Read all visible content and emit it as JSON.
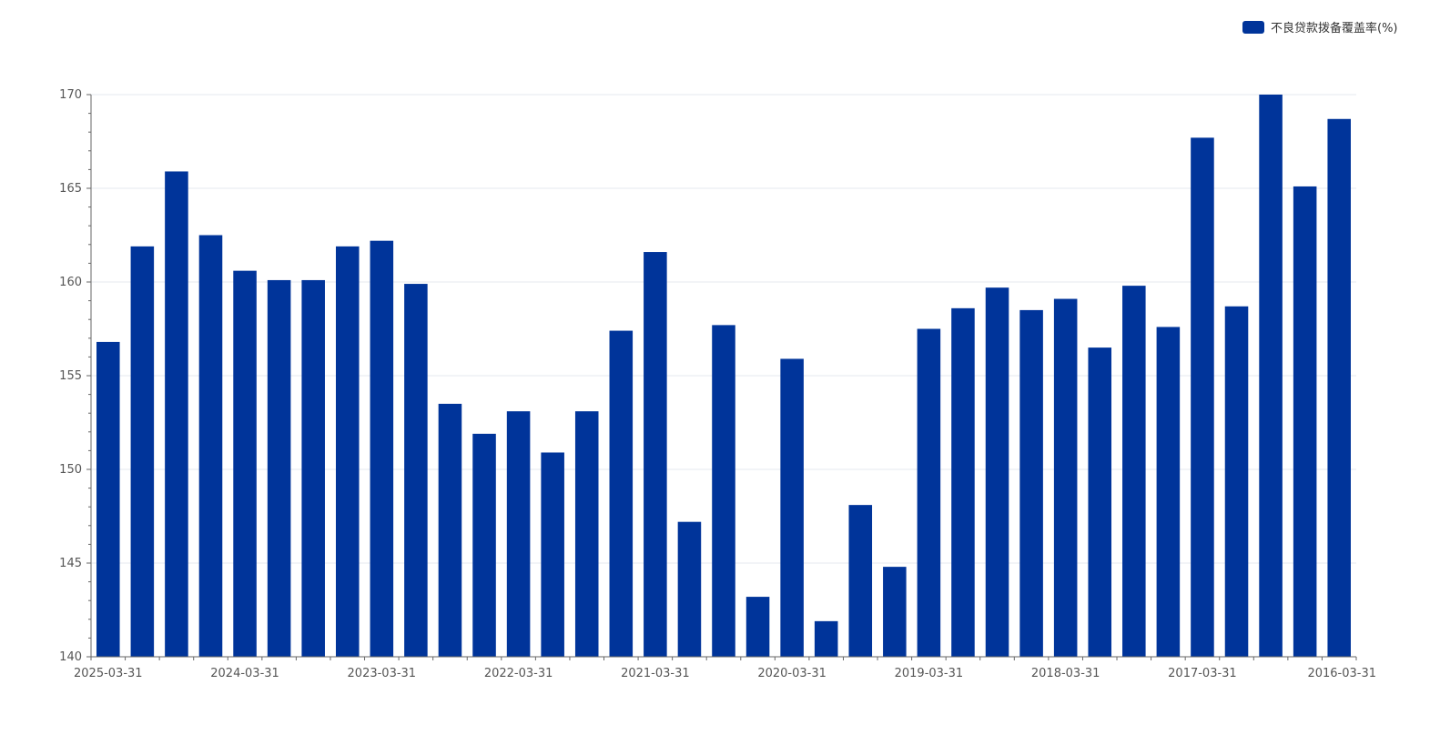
{
  "chart_data": {
    "type": "bar",
    "title": "",
    "xlabel": "",
    "ylabel": "",
    "ylim": [
      140,
      170
    ],
    "yticks": [
      140,
      145,
      150,
      155,
      160,
      165,
      170
    ],
    "x_order": "descending",
    "grid": true,
    "legend_position": "top-right",
    "series": [
      {
        "name": "不良贷款拨备覆盖率(%)",
        "color": "#00349a",
        "categories": [
          "2025-03-31",
          "2024-12-31",
          "2024-09-30",
          "2024-06-30",
          "2024-03-31",
          "2023-12-31",
          "2023-09-30",
          "2023-06-30",
          "2023-03-31",
          "2022-12-31",
          "2022-09-30",
          "2022-06-30",
          "2022-03-31",
          "2021-12-31",
          "2021-09-30",
          "2021-06-30",
          "2021-03-31",
          "2020-12-31",
          "2020-09-30",
          "2020-06-30",
          "2020-03-31",
          "2019-12-31",
          "2019-09-30",
          "2019-06-30",
          "2019-03-31",
          "2018-12-31",
          "2018-09-30",
          "2018-06-30",
          "2018-03-31",
          "2017-12-31",
          "2017-09-30",
          "2017-06-30",
          "2017-03-31",
          "2016-12-31",
          "2016-09-30",
          "2016-06-30",
          "2016-03-31"
        ],
        "values": [
          156.8,
          161.9,
          165.9,
          162.5,
          160.6,
          160.1,
          160.1,
          161.9,
          162.2,
          159.9,
          153.5,
          151.9,
          153.1,
          150.9,
          153.1,
          157.4,
          161.6,
          147.2,
          157.7,
          143.2,
          155.9,
          141.9,
          148.1,
          144.8,
          157.5,
          158.6,
          159.7,
          158.5,
          159.1,
          156.5,
          159.8,
          157.6,
          167.7,
          158.7,
          170.0,
          165.1,
          168.7
        ]
      }
    ],
    "x_tick_labels": [
      "2025-03-31",
      "2024-03-31",
      "2023-03-31",
      "2022-03-31",
      "2021-03-31",
      "2020-03-31",
      "2019-03-31",
      "2018-03-31",
      "2017-03-31",
      "2016-03-31"
    ]
  }
}
